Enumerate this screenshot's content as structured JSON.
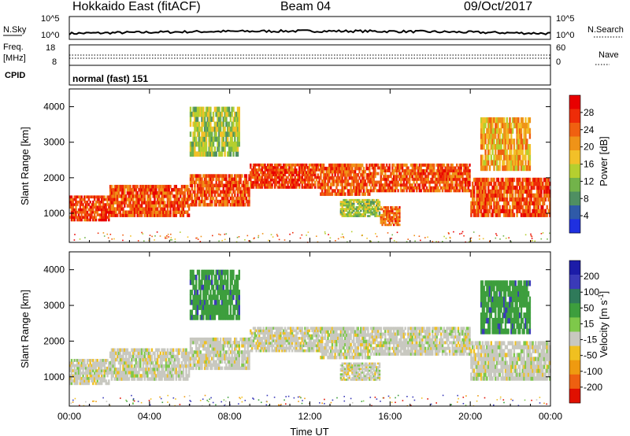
{
  "header": {
    "radar": "Hokkaido East (fitACF)",
    "beam": "Beam 04",
    "date": "09/Oct/2017"
  },
  "top_panels": {
    "noise_label": "N.Sky",
    "noise_ticks": [
      "10^5",
      "10^0"
    ],
    "noise_right_label": "N.Search",
    "freq_label": "Freq.",
    "freq_unit": "[MHz]",
    "freq_ticks": [
      "18",
      "8"
    ],
    "nave_label": "Nave",
    "nave_ticks": [
      "60",
      "0"
    ],
    "cpid_label": "CPID",
    "cpid_value": "normal (fast) 151"
  },
  "chart_data": [
    {
      "type": "heatmap",
      "panel": "power",
      "xlabel": "",
      "ylabel": "Slant Range [km]",
      "xlim": [
        0,
        24
      ],
      "ylim": [
        180,
        4500
      ],
      "yticks": [
        1000,
        2000,
        3000,
        4000
      ],
      "colorbar": {
        "label": "Power [dB]",
        "ticks": [
          4,
          8,
          12,
          16,
          20,
          24,
          28
        ],
        "colors": [
          "#1f30e0",
          "#2f5aa8",
          "#4f8f62",
          "#72b34a",
          "#b5cf2f",
          "#f2c028",
          "#ef9318",
          "#f06010",
          "#ee2c08",
          "#e80000"
        ]
      },
      "echo_bands": [
        {
          "t0": 0.0,
          "t1": 2.0,
          "r0": 780,
          "r1": 1500,
          "power_db": 30
        },
        {
          "t0": 2.0,
          "t1": 6.0,
          "r0": 900,
          "r1": 1800,
          "power_db": 29
        },
        {
          "t0": 6.0,
          "t1": 9.0,
          "r0": 1200,
          "r1": 2100,
          "power_db": 29
        },
        {
          "t0": 9.0,
          "t1": 12.5,
          "r0": 1700,
          "r1": 2400,
          "power_db": 30
        },
        {
          "t0": 12.5,
          "t1": 15.0,
          "r0": 1500,
          "r1": 2400,
          "power_db": 29
        },
        {
          "t0": 15.0,
          "t1": 20.0,
          "r0": 1600,
          "r1": 2400,
          "power_db": 29
        },
        {
          "t0": 20.0,
          "t1": 24.0,
          "r0": 900,
          "r1": 2000,
          "power_db": 29
        },
        {
          "t0": 13.5,
          "t1": 15.5,
          "r0": 900,
          "r1": 1400,
          "power_db": 18
        },
        {
          "t0": 15.5,
          "t1": 16.5,
          "r0": 650,
          "r1": 1200,
          "power_db": 28
        },
        {
          "t0": 6.0,
          "t1": 8.5,
          "r0": 2600,
          "r1": 4000,
          "power_db": 18
        },
        {
          "t0": 20.5,
          "t1": 23.0,
          "r0": 2200,
          "r1": 3700,
          "power_db": 24
        }
      ]
    },
    {
      "type": "heatmap",
      "panel": "velocity",
      "xlabel": "Time UT",
      "ylabel": "Slant Range [km]",
      "xlim": [
        0,
        24
      ],
      "ylim": [
        180,
        4500
      ],
      "xticks": [
        "00:00",
        "04:00",
        "08:00",
        "12:00",
        "16:00",
        "20:00",
        "00:00"
      ],
      "yticks": [
        1000,
        2000,
        3000,
        4000
      ],
      "colorbar": {
        "label": "Velocity [m s^-1]",
        "ticks": [
          200,
          100,
          50,
          15,
          -15,
          -50,
          -100,
          -200
        ],
        "colors": [
          "#1c1ca8",
          "#3a3ab8",
          "#2f7a5a",
          "#3d9e3d",
          "#7ec84a",
          "#c8c8c0",
          "#f0c020",
          "#ef9a10",
          "#ee6010",
          "#e01000"
        ]
      },
      "echo_bands": [
        {
          "t0": 0.0,
          "t1": 2.0,
          "r0": 780,
          "r1": 1500,
          "velocity": 0
        },
        {
          "t0": 2.0,
          "t1": 6.0,
          "r0": 900,
          "r1": 1800,
          "velocity": 0
        },
        {
          "t0": 6.0,
          "t1": 9.0,
          "r0": 1200,
          "r1": 2100,
          "velocity": 0
        },
        {
          "t0": 9.0,
          "t1": 12.5,
          "r0": 1700,
          "r1": 2400,
          "velocity": 0
        },
        {
          "t0": 12.5,
          "t1": 15.0,
          "r0": 1500,
          "r1": 2400,
          "velocity": 0
        },
        {
          "t0": 15.0,
          "t1": 20.0,
          "r0": 1600,
          "r1": 2400,
          "velocity": 0
        },
        {
          "t0": 20.0,
          "t1": 24.0,
          "r0": 900,
          "r1": 2000,
          "velocity": 0
        },
        {
          "t0": 13.5,
          "t1": 15.5,
          "r0": 900,
          "r1": 1400,
          "velocity": 0
        },
        {
          "t0": 6.0,
          "t1": 8.5,
          "r0": 2600,
          "r1": 4000,
          "velocity": 60
        },
        {
          "t0": 20.5,
          "t1": 23.0,
          "r0": 2200,
          "r1": 3700,
          "velocity": 60
        }
      ]
    }
  ]
}
